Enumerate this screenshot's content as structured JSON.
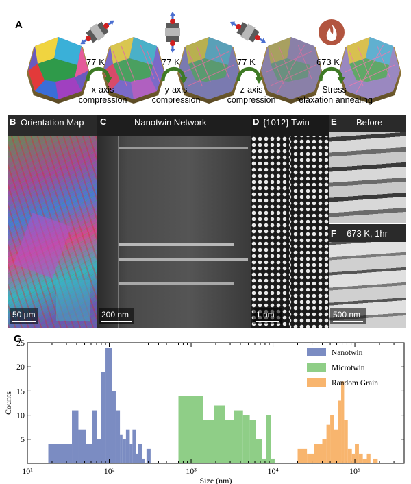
{
  "panelA": {
    "letter": "A",
    "steps": [
      {
        "temp": "77 K",
        "label": [
          "x-axis",
          "compression"
        ],
        "icon": "press-x-icon"
      },
      {
        "temp": "77 K",
        "label": [
          "y-axis",
          "compression"
        ],
        "icon": "press-y-icon"
      },
      {
        "temp": "77 K",
        "label": [
          "z-axis",
          "compression"
        ],
        "icon": "press-z-icon"
      },
      {
        "temp": "673 K",
        "label": [
          "Stress",
          "relaxation annealing"
        ],
        "icon": "flame-icon"
      }
    ]
  },
  "panelB": {
    "letter": "B",
    "title": "Orientation Map",
    "scalebar": "50 µm"
  },
  "panelC": {
    "letter": "C",
    "title": "Nanotwin Network",
    "scalebar": "200 nm"
  },
  "panelD": {
    "letter": "D",
    "title": "{10¯12} Twin",
    "title_html_parts": [
      "{10",
      "1",
      "2} Twin"
    ],
    "scalebar": "1 nm"
  },
  "panelE": {
    "letter": "E",
    "title": "Before"
  },
  "panelF": {
    "letter": "F",
    "title": "673 K, 1hr",
    "scalebar": "500 nm"
  },
  "panelG": {
    "letter": "G"
  },
  "chart_data": {
    "type": "bar",
    "xscale": "log",
    "xlabel": "Size (nm)",
    "ylabel": "Counts",
    "xlim": [
      10,
      400000
    ],
    "ylim": [
      0,
      25
    ],
    "xticks": [
      "10¹",
      "10²",
      "10³",
      "10⁴",
      "10⁵"
    ],
    "yticks": [
      5,
      10,
      15,
      20,
      25
    ],
    "legend_position": "top-right",
    "series": [
      {
        "name": "Nanotwin",
        "color": "#7b8cc2",
        "bins": [
          [
            18,
            35,
            4
          ],
          [
            35,
            42,
            11
          ],
          [
            42,
            52,
            7
          ],
          [
            52,
            62,
            4
          ],
          [
            62,
            70,
            11
          ],
          [
            70,
            80,
            5
          ],
          [
            80,
            90,
            19
          ],
          [
            90,
            108,
            24
          ],
          [
            108,
            120,
            15
          ],
          [
            120,
            135,
            11
          ],
          [
            135,
            145,
            6
          ],
          [
            145,
            160,
            5
          ],
          [
            160,
            178,
            7
          ],
          [
            178,
            192,
            4
          ],
          [
            192,
            210,
            7
          ],
          [
            210,
            226,
            2
          ],
          [
            226,
            250,
            4
          ],
          [
            250,
            272,
            1
          ],
          [
            285,
            320,
            3
          ]
        ]
      },
      {
        "name": "Microtwin",
        "color": "#8fce87",
        "bins": [
          [
            700,
            1400,
            14
          ],
          [
            1400,
            1900,
            9
          ],
          [
            1900,
            2600,
            12
          ],
          [
            2600,
            3300,
            9
          ],
          [
            3300,
            4300,
            11
          ],
          [
            4300,
            5200,
            10
          ],
          [
            5200,
            6200,
            9
          ],
          [
            6200,
            7300,
            5
          ],
          [
            7300,
            8300,
            1
          ],
          [
            8300,
            9500,
            10
          ],
          [
            9500,
            10500,
            1
          ]
        ]
      },
      {
        "name": "Random Grain",
        "color": "#f8b56e",
        "bins": [
          [
            20000,
            26000,
            3
          ],
          [
            26000,
            32000,
            2
          ],
          [
            32000,
            40000,
            4
          ],
          [
            40000,
            45000,
            5
          ],
          [
            45000,
            50000,
            8
          ],
          [
            50000,
            56000,
            10
          ],
          [
            56000,
            62000,
            7
          ],
          [
            62000,
            68000,
            13
          ],
          [
            68000,
            74000,
            17
          ],
          [
            74000,
            82000,
            9
          ],
          [
            82000,
            92000,
            3
          ],
          [
            92000,
            100000,
            2
          ],
          [
            100000,
            112000,
            4
          ],
          [
            112000,
            125000,
            2
          ],
          [
            125000,
            140000,
            1
          ],
          [
            140000,
            155000,
            2
          ],
          [
            165000,
            190000,
            1
          ]
        ]
      }
    ]
  }
}
